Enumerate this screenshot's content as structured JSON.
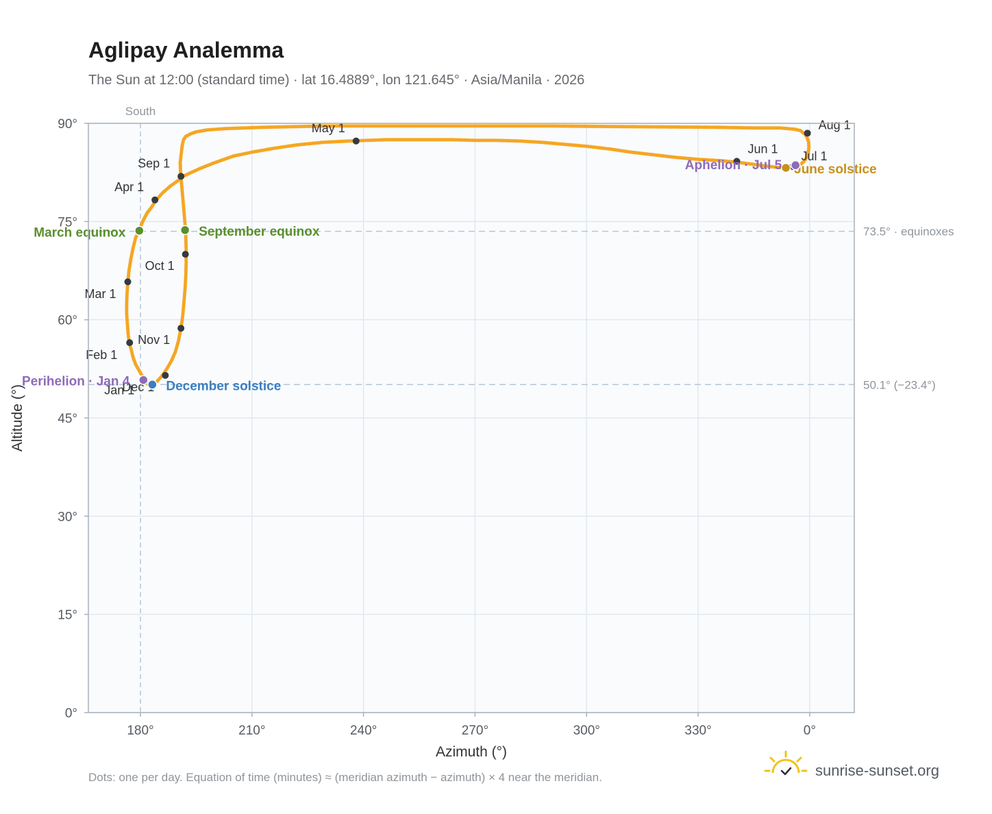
{
  "title": "Aglipay Analemma",
  "subtitle": "The Sun at 12:00 (standard time) · lat 16.4889°, lon 121.645° · Asia/Manila · 2026",
  "footnote": "Dots: one per day. Equation of time (minutes) ≈ (meridian azimuth − azimuth) × 4 near the meridian.",
  "brand": "sunrise-sunset.org",
  "colors": {
    "curve": "#f5a623",
    "month_dot": "#343a40",
    "equinox": "#5a8f2e",
    "june_solstice": "#c8901a",
    "december_solstice": "#3a7fc1",
    "apsis": "#8e6bb8",
    "plot_bg": "#f9fbfd",
    "grid": "#e3e8ee",
    "ref_line": "#b8c6d4"
  },
  "chart_data": {
    "type": "scatter",
    "xlabel": "Azimuth (°)",
    "ylabel": "Altitude (°)",
    "x_ticks": [
      "180°",
      "210°",
      "240°",
      "270°",
      "300°",
      "330°",
      "0°"
    ],
    "y_ticks": [
      "0°",
      "15°",
      "30°",
      "45°",
      "60°",
      "75°",
      "90°"
    ],
    "xlim": [
      166,
      372
    ],
    "ylim": [
      0,
      90
    ],
    "grid": true,
    "south_label": "South",
    "reference_lines": [
      {
        "altitude": 73.5,
        "label": "73.5° · equinoxes"
      },
      {
        "altitude": 50.1,
        "label": "50.1° (−23.4°)"
      }
    ],
    "analemma_points": [
      [
        180.8,
        50.8
      ],
      [
        181.3,
        51.2
      ],
      [
        180.4,
        51.5
      ],
      [
        179.6,
        52.3
      ],
      [
        178.7,
        53.2
      ],
      [
        178.0,
        54.3
      ],
      [
        177.5,
        55.5
      ],
      [
        177.0,
        56.4
      ],
      [
        176.7,
        57.8
      ],
      [
        176.5,
        59.3
      ],
      [
        176.3,
        60.9
      ],
      [
        176.3,
        62.4
      ],
      [
        176.4,
        64.0
      ],
      [
        176.6,
        65.6
      ],
      [
        176.9,
        67.4
      ],
      [
        177.4,
        69.2
      ],
      [
        178.0,
        70.9
      ],
      [
        178.7,
        72.5
      ],
      [
        179.6,
        73.6
      ],
      [
        180.6,
        75.0
      ],
      [
        181.8,
        76.3
      ],
      [
        183.0,
        77.2
      ],
      [
        184.1,
        78.2
      ],
      [
        186.0,
        79.4
      ],
      [
        188.0,
        80.4
      ],
      [
        190.0,
        81.2
      ],
      [
        191.8,
        82.0
      ],
      [
        196.0,
        83.1
      ],
      [
        200.0,
        84.0
      ],
      [
        205.0,
        85.0
      ],
      [
        210.0,
        85.6
      ],
      [
        216.0,
        86.2
      ],
      [
        222.0,
        86.7
      ],
      [
        229.0,
        87.1
      ],
      [
        236.0,
        87.3
      ],
      [
        241.0,
        87.4
      ],
      [
        246.0,
        87.5
      ],
      [
        252.0,
        87.5
      ],
      [
        258.0,
        87.5
      ],
      [
        264.0,
        87.5
      ],
      [
        270.0,
        87.4
      ],
      [
        276.0,
        87.4
      ],
      [
        282.0,
        87.3
      ],
      [
        288.0,
        87.1
      ],
      [
        294.0,
        86.8
      ],
      [
        300.0,
        86.5
      ],
      [
        306.0,
        86.1
      ],
      [
        312.0,
        85.6
      ],
      [
        318.0,
        85.2
      ],
      [
        324.0,
        84.8
      ],
      [
        330.0,
        84.5
      ],
      [
        336.0,
        84.3
      ],
      [
        340.0,
        84.1
      ],
      [
        344.0,
        83.8
      ],
      [
        348.0,
        83.5
      ],
      [
        351.0,
        83.3
      ],
      [
        353.6,
        83.2
      ],
      [
        355.0,
        83.3
      ],
      [
        356.5,
        83.5
      ],
      [
        357.7,
        83.8
      ],
      [
        358.5,
        84.2
      ],
      [
        359.2,
        84.8
      ],
      [
        359.6,
        85.5
      ],
      [
        359.8,
        86.3
      ],
      [
        359.7,
        87.2
      ],
      [
        359.3,
        87.8
      ],
      [
        358.8,
        88.3
      ],
      [
        357.5,
        88.9
      ],
      [
        356.0,
        89.1
      ],
      [
        352.0,
        89.3
      ],
      [
        345.0,
        89.3
      ],
      [
        335.0,
        89.4
      ],
      [
        310.0,
        89.5
      ],
      [
        290.0,
        89.6
      ],
      [
        268.0,
        89.6
      ],
      [
        250.0,
        89.6
      ],
      [
        230.0,
        89.6
      ],
      [
        213.0,
        89.4
      ],
      [
        203.0,
        89.2
      ],
      [
        198.0,
        89.0
      ],
      [
        195.0,
        88.7
      ],
      [
        193.5,
        88.4
      ],
      [
        192.2,
        88.0
      ],
      [
        191.6,
        87.5
      ],
      [
        191.3,
        86.8
      ],
      [
        191.1,
        86.0
      ],
      [
        190.9,
        85.0
      ],
      [
        190.7,
        84.0
      ],
      [
        190.8,
        82.5
      ],
      [
        191.1,
        80.5
      ],
      [
        191.4,
        78.6
      ],
      [
        191.7,
        76.6
      ],
      [
        192.0,
        74.6
      ],
      [
        192.2,
        72.7
      ],
      [
        192.3,
        70.7
      ],
      [
        192.3,
        68.7
      ],
      [
        192.2,
        66.7
      ],
      [
        192.0,
        64.7
      ],
      [
        191.7,
        62.7
      ],
      [
        191.4,
        60.7
      ],
      [
        190.9,
        58.7
      ],
      [
        190.2,
        56.7
      ],
      [
        189.4,
        55.1
      ],
      [
        188.4,
        53.8
      ],
      [
        187.2,
        52.6
      ],
      [
        185.9,
        51.5
      ],
      [
        184.5,
        50.6
      ],
      [
        183.2,
        50.1
      ],
      [
        182.0,
        50.2
      ],
      [
        181.2,
        50.4
      ],
      [
        180.8,
        50.8
      ]
    ],
    "month_markers": [
      {
        "label": "Jan 1",
        "azimuth": 180.6,
        "altitude": 50.9
      },
      {
        "label": "Feb 1",
        "azimuth": 177.1,
        "altitude": 56.5
      },
      {
        "label": "Mar 1",
        "azimuth": 176.6,
        "altitude": 65.8
      },
      {
        "label": "Apr 1",
        "azimuth": 183.9,
        "altitude": 78.3
      },
      {
        "label": "May 1",
        "azimuth": 238.0,
        "altitude": 87.3
      },
      {
        "label": "Jun 1",
        "azimuth": 340.4,
        "altitude": 84.2
      },
      {
        "label": "Jul 1",
        "azimuth": 355.5,
        "altitude": 83.4
      },
      {
        "label": "Aug 1",
        "azimuth": 359.4,
        "altitude": 88.5
      },
      {
        "label": "Sep 1",
        "azimuth": 190.9,
        "altitude": 81.9
      },
      {
        "label": "Oct 1",
        "azimuth": 192.1,
        "altitude": 70.0
      },
      {
        "label": "Nov 1",
        "azimuth": 190.9,
        "altitude": 58.7
      },
      {
        "label": "Dec 1",
        "azimuth": 186.7,
        "altitude": 51.5
      }
    ],
    "events": [
      {
        "label": "March equinox",
        "azimuth": 179.7,
        "altitude": 73.6,
        "color_key": "equinox"
      },
      {
        "label": "September equinox",
        "azimuth": 192.0,
        "altitude": 73.7,
        "color_key": "equinox"
      },
      {
        "label": "June solstice",
        "azimuth": 353.6,
        "altitude": 83.2,
        "color_key": "june_solstice"
      },
      {
        "label": "December solstice",
        "azimuth": 183.2,
        "altitude": 50.1,
        "color_key": "december_solstice"
      },
      {
        "label": "Perihelion · Jan 4",
        "azimuth": 180.8,
        "altitude": 50.8,
        "color_key": "apsis"
      },
      {
        "label": "Aphelion · Jul 5",
        "azimuth": 356.2,
        "altitude": 83.6,
        "color_key": "apsis"
      }
    ]
  }
}
